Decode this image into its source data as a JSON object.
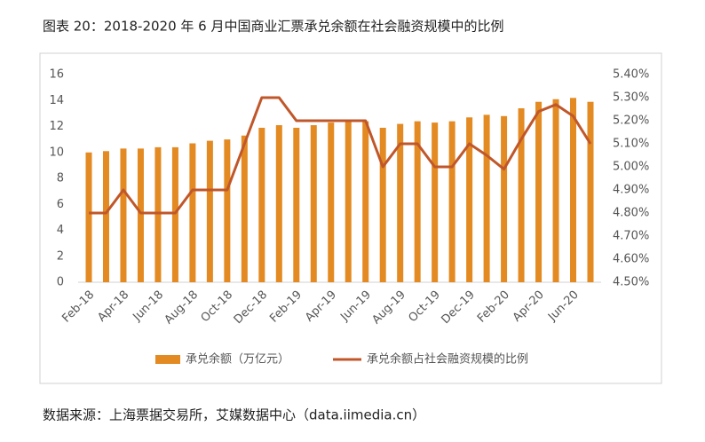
{
  "chart_data": {
    "type": "bar_line",
    "title": "图表 20：2018-2020 年 6 月中国商业汇票承兑余额在社会融资规模中的比例",
    "source": "数据来源：上海票据交易所，艾媒数据中心（data.iimedia.cn）",
    "categories": [
      "Feb-18",
      null,
      "Apr-18",
      null,
      "Jun-18",
      null,
      "Aug-18",
      null,
      "Oct-18",
      null,
      "Dec-18",
      null,
      "Feb-19",
      null,
      "Apr-19",
      null,
      "Jun-19",
      null,
      "Aug-19",
      null,
      "Oct-19",
      null,
      "Dec-19",
      null,
      "Feb-20",
      null,
      "Apr-20",
      null,
      "Jun-20",
      null
    ],
    "series": [
      {
        "name": "承兑余额（万亿元）",
        "color": "#e38a22",
        "type": "bar",
        "values": [
          10.0,
          10.1,
          10.3,
          10.3,
          10.4,
          10.4,
          10.7,
          10.9,
          11.0,
          11.3,
          11.9,
          12.1,
          11.9,
          12.1,
          12.3,
          12.4,
          12.4,
          11.9,
          12.2,
          12.4,
          12.3,
          12.4,
          12.7,
          12.9,
          12.8,
          13.4,
          13.9,
          14.1,
          14.2,
          13.9
        ]
      },
      {
        "name": "承兑余额占社会融资规模的比例",
        "color": "#c0572a",
        "type": "line",
        "axis": "y2",
        "values": [
          4.8,
          4.8,
          4.9,
          4.8,
          4.8,
          4.8,
          4.9,
          4.9,
          4.9,
          5.1,
          5.3,
          5.3,
          5.2,
          5.2,
          5.2,
          5.2,
          5.2,
          5.0,
          5.1,
          5.1,
          5.0,
          5.0,
          5.1,
          5.05,
          4.99,
          5.12,
          5.24,
          5.27,
          5.22,
          5.1
        ]
      }
    ],
    "ylim": [
      0,
      16
    ],
    "yticks": [
      0,
      2,
      4,
      6,
      8,
      10,
      12,
      14,
      16
    ],
    "y2lim": [
      4.5,
      5.4
    ],
    "y2ticks": [
      {
        "value": 4.5,
        "label": "4.50%"
      },
      {
        "value": 4.6,
        "label": "4.60%"
      },
      {
        "value": 4.7,
        "label": "4.70%"
      },
      {
        "value": 4.8,
        "label": "4.80%"
      },
      {
        "value": 4.9,
        "label": "4.90%"
      },
      {
        "value": 5.0,
        "label": "5.00%"
      },
      {
        "value": 5.1,
        "label": "5.10%"
      },
      {
        "value": 5.2,
        "label": "5.20%"
      },
      {
        "value": 5.3,
        "label": "5.30%"
      },
      {
        "value": 5.4,
        "label": "5.40%"
      }
    ],
    "legend": "bottom"
  }
}
